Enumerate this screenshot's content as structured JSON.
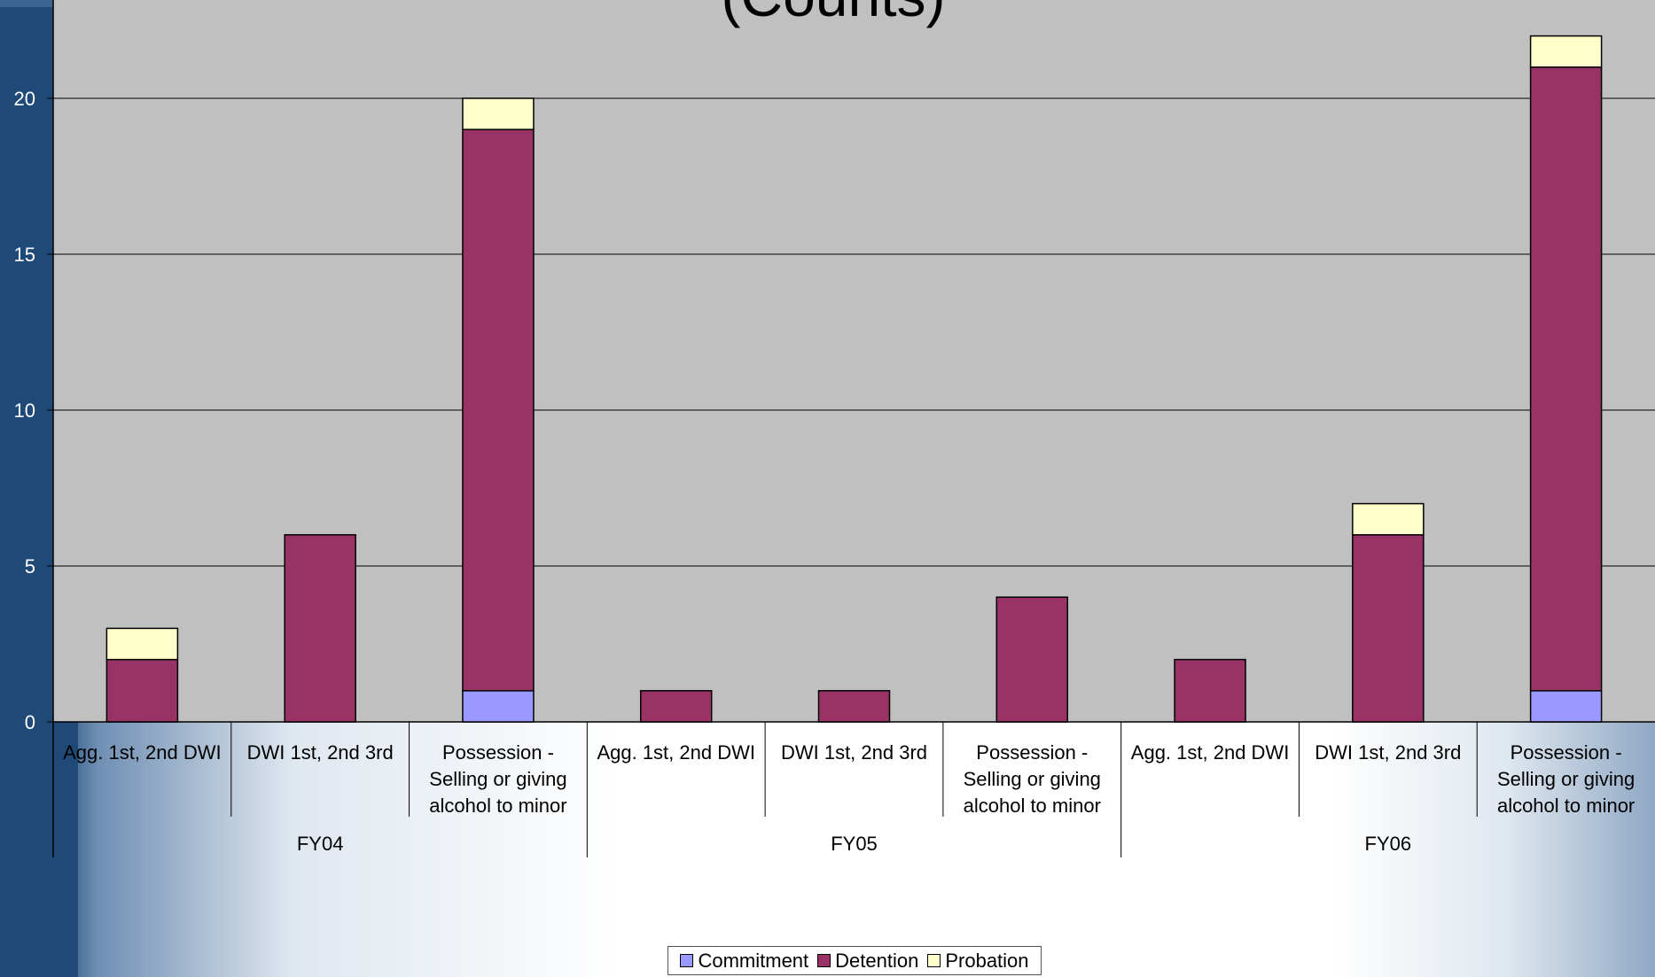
{
  "chart_data": {
    "type": "bar",
    "stacked": true,
    "title": "(Counts)",
    "groups": [
      {
        "label": "FY04",
        "categories": [
          "Agg. 1st, 2nd DWI",
          "DWI 1st, 2nd 3rd",
          "Possession - Selling or giving alcohol to minor"
        ]
      },
      {
        "label": "FY05",
        "categories": [
          "Agg. 1st, 2nd DWI",
          "DWI 1st, 2nd 3rd",
          "Possession - Selling or giving alcohol to minor"
        ]
      },
      {
        "label": "FY06",
        "categories": [
          "Agg. 1st, 2nd DWI",
          "DWI 1st, 2nd 3rd",
          "Possession - Selling or giving alcohol to minor"
        ]
      }
    ],
    "series": [
      {
        "name": "Commitment",
        "color": "#9999ff",
        "values": [
          0,
          0,
          1,
          0,
          0,
          0,
          0,
          0,
          1
        ]
      },
      {
        "name": "Detention",
        "color": "#993366",
        "values": [
          2,
          6,
          18,
          1,
          1,
          4,
          2,
          6,
          20
        ]
      },
      {
        "name": "Probation",
        "color": "#ffffcc",
        "values": [
          1,
          0,
          1,
          0,
          0,
          0,
          0,
          1,
          1
        ]
      }
    ],
    "yticks": [
      0,
      5,
      10,
      15,
      20
    ],
    "ylim": [
      0,
      23
    ],
    "grid": true,
    "legend": "bottom"
  }
}
